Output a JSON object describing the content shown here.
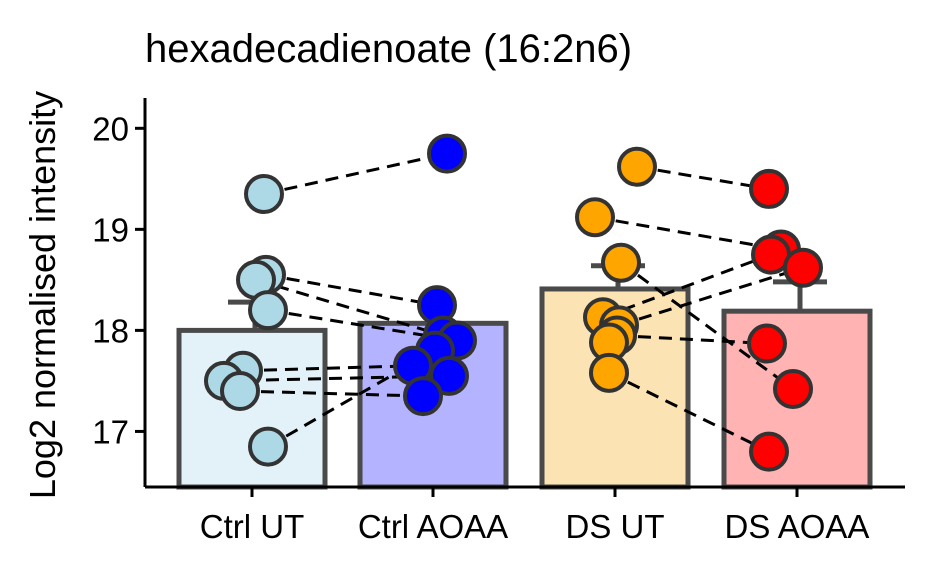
{
  "chart_data": {
    "type": "bar",
    "title": "hexadecadienoate (16:2n6)",
    "xlabel": "",
    "ylabel": "Log2 normalised intensity",
    "categories": [
      "Ctrl UT",
      "Ctrl AOAA",
      "DS UT",
      "DS AOAA"
    ],
    "ylim": [
      16.45,
      20.3
    ],
    "yticks": [
      17,
      18,
      19,
      20
    ],
    "baseline": 16.45,
    "grid": false,
    "legend": "none",
    "bars": [
      {
        "category": "Ctrl UT",
        "mean": 18.0,
        "se_upper": 18.28,
        "fill": "#e3f1f8",
        "point_color": "#add8e6"
      },
      {
        "category": "Ctrl AOAA",
        "mean": 18.07,
        "se_upper": 18.07,
        "fill": "#b3b3ff",
        "point_color": "#0000ff"
      },
      {
        "category": "DS UT",
        "mean": 18.41,
        "se_upper": 18.64,
        "fill": "#fbe3b4",
        "point_color": "#ffa500"
      },
      {
        "category": "DS AOAA",
        "mean": 18.19,
        "se_upper": 18.48,
        "fill": "#ffb3b3",
        "point_color": "#ff0000"
      }
    ],
    "points": {
      "Ctrl UT": [
        19.35,
        18.55,
        18.5,
        18.2,
        17.6,
        17.5,
        17.4,
        16.85
      ],
      "Ctrl AOAA": [
        19.75,
        18.25,
        17.95,
        17.9,
        17.8,
        17.65,
        17.55,
        17.35
      ],
      "DS UT": [
        19.62,
        19.12,
        18.67,
        18.13,
        18.05,
        17.95,
        17.88,
        17.58
      ],
      "DS AOAA": [
        19.4,
        18.8,
        18.75,
        18.62,
        17.87,
        17.42,
        16.8
      ]
    },
    "pairs": [
      {
        "from": [
          "Ctrl UT",
          19.35
        ],
        "to": [
          "Ctrl AOAA",
          19.75
        ]
      },
      {
        "from": [
          "Ctrl UT",
          18.55
        ],
        "to": [
          "Ctrl AOAA",
          18.25
        ]
      },
      {
        "from": [
          "Ctrl UT",
          18.5
        ],
        "to": [
          "Ctrl AOAA",
          17.95
        ]
      },
      {
        "from": [
          "Ctrl UT",
          18.2
        ],
        "to": [
          "Ctrl AOAA",
          17.9
        ]
      },
      {
        "from": [
          "Ctrl UT",
          17.6
        ],
        "to": [
          "Ctrl AOAA",
          17.65
        ]
      },
      {
        "from": [
          "Ctrl UT",
          17.5
        ],
        "to": [
          "Ctrl AOAA",
          17.55
        ]
      },
      {
        "from": [
          "Ctrl UT",
          17.4
        ],
        "to": [
          "Ctrl AOAA",
          17.35
        ]
      },
      {
        "from": [
          "Ctrl UT",
          16.85
        ],
        "to": [
          "Ctrl AOAA",
          17.8
        ]
      },
      {
        "from": [
          "DS UT",
          19.62
        ],
        "to": [
          "DS AOAA",
          19.4
        ]
      },
      {
        "from": [
          "DS UT",
          19.12
        ],
        "to": [
          "DS AOAA",
          18.8
        ]
      },
      {
        "from": [
          "DS UT",
          18.67
        ],
        "to": [
          "DS AOAA",
          17.42
        ]
      },
      {
        "from": [
          "DS UT",
          18.13
        ],
        "to": [
          "DS AOAA",
          18.75
        ]
      },
      {
        "from": [
          "DS UT",
          18.05
        ],
        "to": [
          "DS AOAA",
          18.62
        ]
      },
      {
        "from": [
          "DS UT",
          17.95
        ],
        "to": [
          "DS AOAA",
          17.87
        ]
      },
      {
        "from": [
          "DS UT",
          17.58
        ],
        "to": [
          "DS AOAA",
          16.8
        ]
      }
    ]
  }
}
